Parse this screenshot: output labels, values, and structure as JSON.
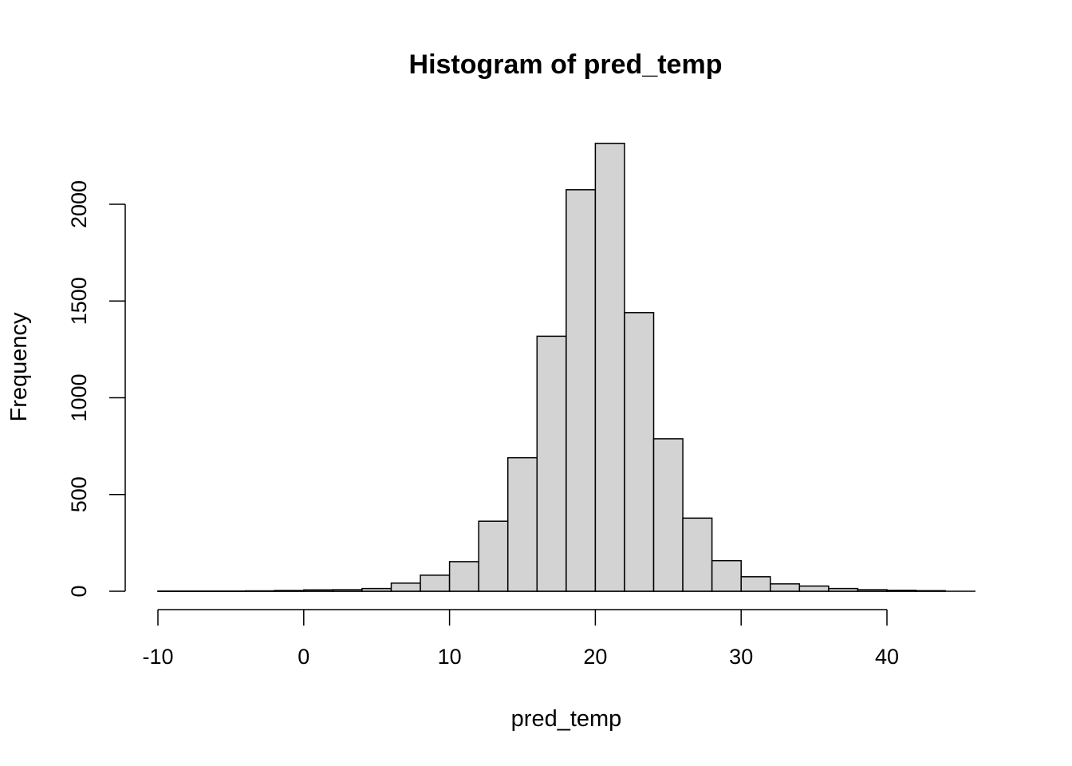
{
  "chart_data": {
    "type": "bar",
    "title": "Histogram of pred_temp",
    "xlabel": "pred_temp",
    "ylabel": "Frequency",
    "xlim": [
      -10,
      46
    ],
    "ylim": [
      0,
      2350
    ],
    "x_ticks": [
      -10,
      0,
      10,
      20,
      30,
      40
    ],
    "y_ticks": [
      0,
      500,
      1000,
      1500,
      2000
    ],
    "bin_width": 2,
    "bins": [
      {
        "start": -10,
        "end": -8,
        "count": 1
      },
      {
        "start": -8,
        "end": -6,
        "count": 1
      },
      {
        "start": -6,
        "end": -4,
        "count": 1
      },
      {
        "start": -4,
        "end": -2,
        "count": 2
      },
      {
        "start": -2,
        "end": 0,
        "count": 4
      },
      {
        "start": 0,
        "end": 2,
        "count": 7
      },
      {
        "start": 2,
        "end": 4,
        "count": 8
      },
      {
        "start": 4,
        "end": 6,
        "count": 14
      },
      {
        "start": 6,
        "end": 8,
        "count": 42
      },
      {
        "start": 8,
        "end": 10,
        "count": 83
      },
      {
        "start": 10,
        "end": 12,
        "count": 153
      },
      {
        "start": 12,
        "end": 14,
        "count": 362
      },
      {
        "start": 14,
        "end": 16,
        "count": 690
      },
      {
        "start": 16,
        "end": 18,
        "count": 1318
      },
      {
        "start": 18,
        "end": 20,
        "count": 2075
      },
      {
        "start": 20,
        "end": 22,
        "count": 2315
      },
      {
        "start": 22,
        "end": 24,
        "count": 1440
      },
      {
        "start": 24,
        "end": 26,
        "count": 788
      },
      {
        "start": 26,
        "end": 28,
        "count": 378
      },
      {
        "start": 28,
        "end": 30,
        "count": 158
      },
      {
        "start": 30,
        "end": 32,
        "count": 75
      },
      {
        "start": 32,
        "end": 34,
        "count": 38
      },
      {
        "start": 34,
        "end": 36,
        "count": 27
      },
      {
        "start": 36,
        "end": 38,
        "count": 14
      },
      {
        "start": 38,
        "end": 40,
        "count": 8
      },
      {
        "start": 40,
        "end": 42,
        "count": 5
      },
      {
        "start": 42,
        "end": 44,
        "count": 3
      }
    ],
    "grid": false,
    "legend": "none",
    "colors": {
      "bar_fill": "#d3d3d3",
      "bar_stroke": "#000000"
    }
  }
}
